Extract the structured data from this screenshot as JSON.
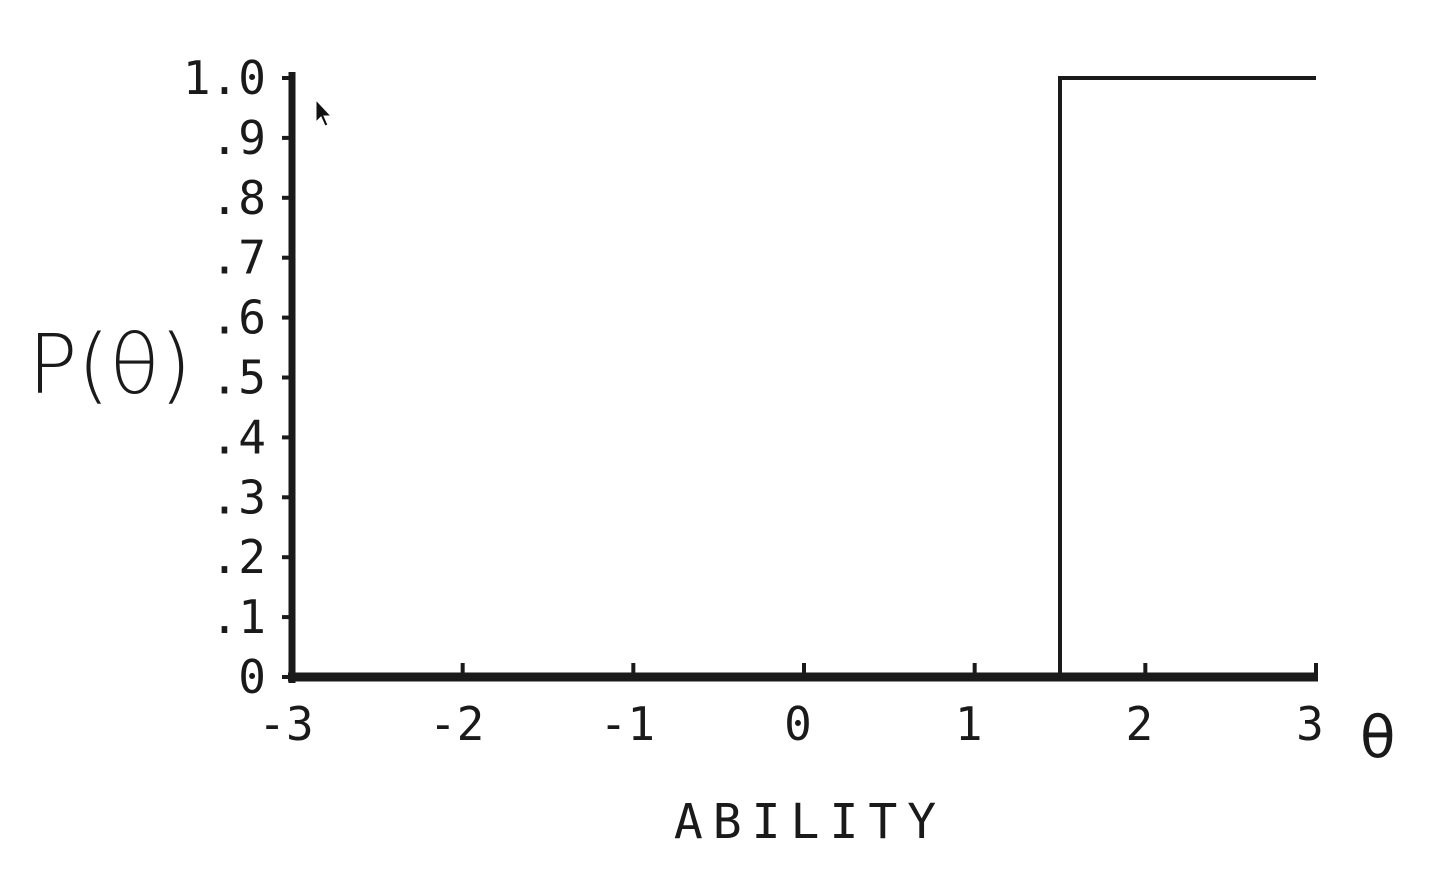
{
  "chart_data": {
    "type": "line",
    "title": "",
    "ylabel": "P(θ)",
    "xlabel": "ABILITY",
    "x_axis_symbol": "θ",
    "xlim": [
      -3,
      3
    ],
    "ylim": [
      0,
      1.0
    ],
    "x_ticks": [
      "-3",
      "-2",
      "-1",
      "0",
      "1",
      "2",
      "3"
    ],
    "y_ticks": [
      "0",
      ".1",
      ".2",
      ".3",
      ".4",
      ".5",
      ".6",
      ".7",
      ".8",
      ".9",
      "1.0"
    ],
    "grid": false,
    "legend": "none",
    "series": [
      {
        "values": [
          {
            "x": -3,
            "y": 0
          },
          {
            "x": 1.5,
            "y": 0
          },
          {
            "x": 1.5,
            "y": 1.0
          },
          {
            "x": 3,
            "y": 1.0
          }
        ]
      }
    ]
  },
  "colors": {
    "ink": "#1a1a1a",
    "background": "#ffffff"
  },
  "icons": {
    "cursor": "mouse-pointer-icon"
  }
}
